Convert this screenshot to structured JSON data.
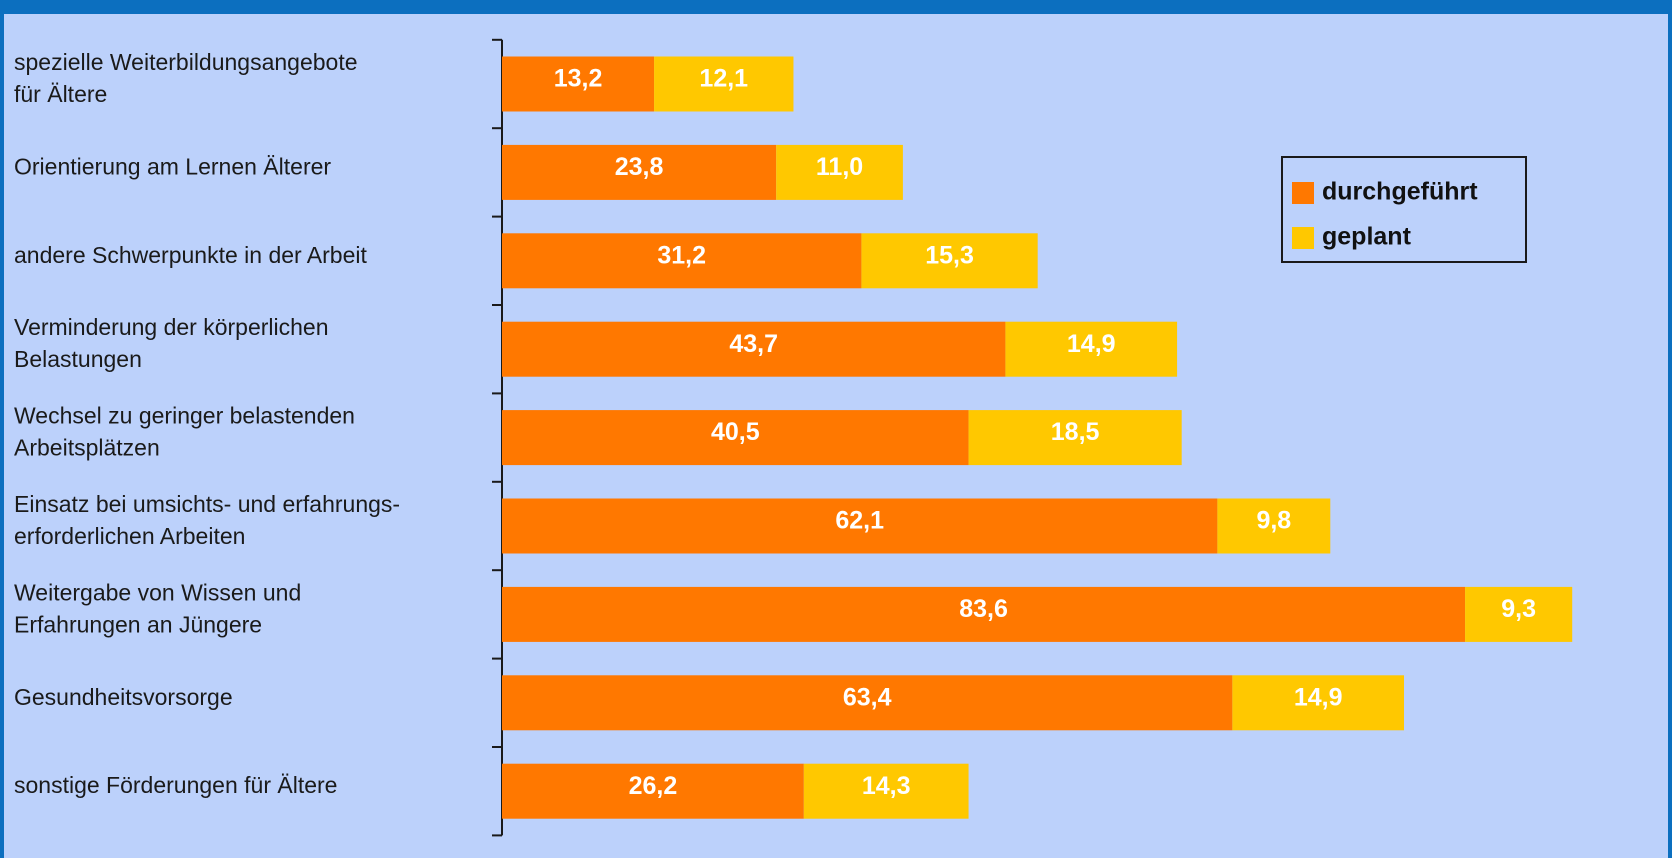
{
  "chart_data": {
    "type": "bar",
    "stacked": true,
    "orientation": "horizontal",
    "categories": [
      "spezielle Weiterbildungsangebote\nfür Ältere",
      "Orientierung am Lernen Älterer",
      "andere Schwerpunkte in der Arbeit",
      "Verminderung der körperlichen\nBelastungen",
      "Wechsel zu geringer belastenden\nArbeitsplätzen",
      "Einsatz bei umsichts- und erfahrungs-\nerforderlichen Arbeiten",
      "Weitergabe von Wissen und\nErfahrungen an Jüngere",
      "Gesundheitsvorsorge",
      "sonstige Förderungen für Ältere"
    ],
    "series": [
      {
        "name": "durchgeführt",
        "color": "#ff7800",
        "values": [
          13.2,
          23.8,
          31.2,
          43.7,
          40.5,
          62.1,
          83.6,
          63.4,
          26.2
        ],
        "labels": [
          "13,2",
          "23,8",
          "31,2",
          "43,7",
          "40,5",
          "62,1",
          "83,6",
          "63,4",
          "26,2"
        ]
      },
      {
        "name": "geplant",
        "color": "#ffc800",
        "values": [
          12.1,
          11.0,
          15.3,
          14.9,
          18.5,
          9.8,
          9.3,
          14.9,
          14.3
        ],
        "labels": [
          "12,1",
          "11,0",
          "15,3",
          "14,9",
          "18,5",
          "9,8",
          "9,3",
          "14,9",
          "14,3"
        ]
      }
    ],
    "xlim": [
      0,
      100
    ],
    "grid": false,
    "legend_position": "top-right",
    "background_color": "#bcd1fb",
    "frame_color": "#0c6fbf"
  }
}
